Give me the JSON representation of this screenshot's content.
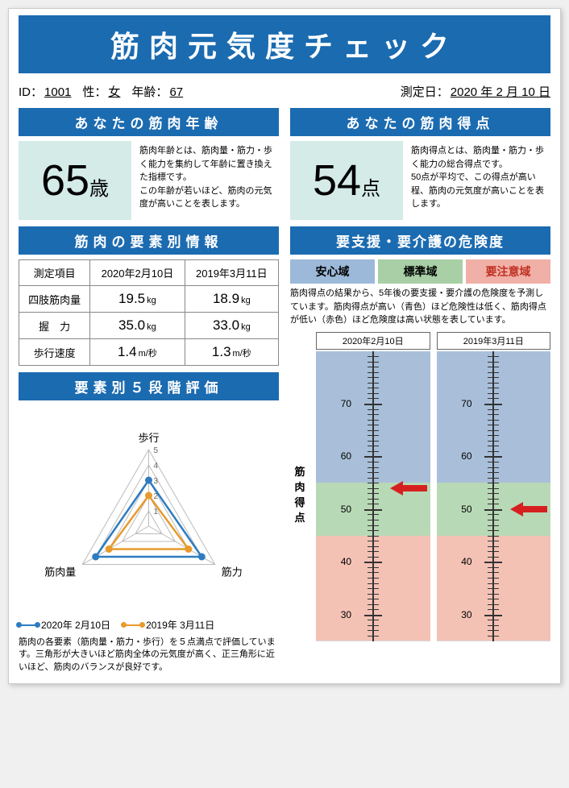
{
  "title": "筋肉元気度チェック",
  "info": {
    "id_label": "ID：",
    "id": "1001",
    "sex_label": "性：",
    "sex": "女",
    "age_label": "年齢：",
    "age": "67",
    "date_label": "測定日：",
    "date": "2020 年 2 月 10 日"
  },
  "left": {
    "age_section": {
      "header": "あなたの筋肉年齢",
      "value": "65",
      "unit": "歳",
      "desc": "筋肉年齢とは、筋肉量・筋力・歩く能力を集約して年齢に置き換えた指標です。\nこの年齢が若いほど、筋肉の元気度が高いことを表します。"
    },
    "elem_header": "筋肉の要素別情報",
    "table": {
      "col0": "測定項目",
      "col1": "2020年2月10日",
      "col2": "2019年3月11日",
      "rows": [
        {
          "label": "四肢筋肉量",
          "v1": "19.5",
          "u1": "kg",
          "v2": "18.9",
          "u2": "kg"
        },
        {
          "label": "握　力",
          "v1": "35.0",
          "u1": "kg",
          "v2": "33.0",
          "u2": "kg"
        },
        {
          "label": "歩行速度",
          "v1": "1.4",
          "u1": "m/秒",
          "v2": "1.3",
          "u2": "m/秒"
        }
      ]
    },
    "radar_header": "要素別５段階評価",
    "radar": {
      "axes": [
        "歩行",
        "筋力",
        "筋肉量"
      ],
      "max": 5,
      "series": [
        {
          "label": "2020年 2月10日",
          "color": "#2e7cc0",
          "values": [
            3,
            4,
            4
          ]
        },
        {
          "label": "2019年 3月11日",
          "color": "#e89a2d",
          "values": [
            2,
            3,
            3
          ]
        }
      ],
      "scale_labels": [
        "1",
        "2",
        "3",
        "4",
        "5"
      ]
    },
    "radar_footnote": "筋肉の各要素（筋肉量・筋力・歩行）を５点満点で評価しています。三角形が大きいほど筋肉全体の元気度が高く、正三角形に近いほど、筋肉のバランスが良好です。"
  },
  "right": {
    "score_section": {
      "header": "あなたの筋肉得点",
      "value": "54",
      "unit": "点",
      "desc": "筋肉得点とは、筋肉量・筋力・歩く能力の総合得点です。\n50点が平均で、この得点が高い程、筋肉の元気度が高いことを表します。"
    },
    "risk_header": "要支援・要介護の危険度",
    "zones": {
      "safe": "安心域",
      "std": "標準域",
      "warn": "要注意域"
    },
    "risk_desc": "筋肉得点の結果から、5年後の要支援・要介護の危険度を予測しています。筋肉得点が高い（青色）ほど危険性は低く、筋肉得点が低い（赤色）ほど危険度は高い状態を表しています。",
    "gauge": {
      "axis_label": "筋肉得点",
      "min": 25,
      "max": 80,
      "ticks": [
        30,
        40,
        50,
        60,
        70
      ],
      "bands": [
        {
          "from": 55,
          "to": 80,
          "color": "#a9bfd9"
        },
        {
          "from": 45,
          "to": 55,
          "color": "#b8d9b5"
        },
        {
          "from": 25,
          "to": 45,
          "color": "#f4c2b5"
        }
      ],
      "columns": [
        {
          "date": "2020年2月10日",
          "value": 54,
          "arrow_color": "#d62020"
        },
        {
          "date": "2019年3月11日",
          "value": 50,
          "arrow_color": "#d62020"
        }
      ]
    }
  }
}
